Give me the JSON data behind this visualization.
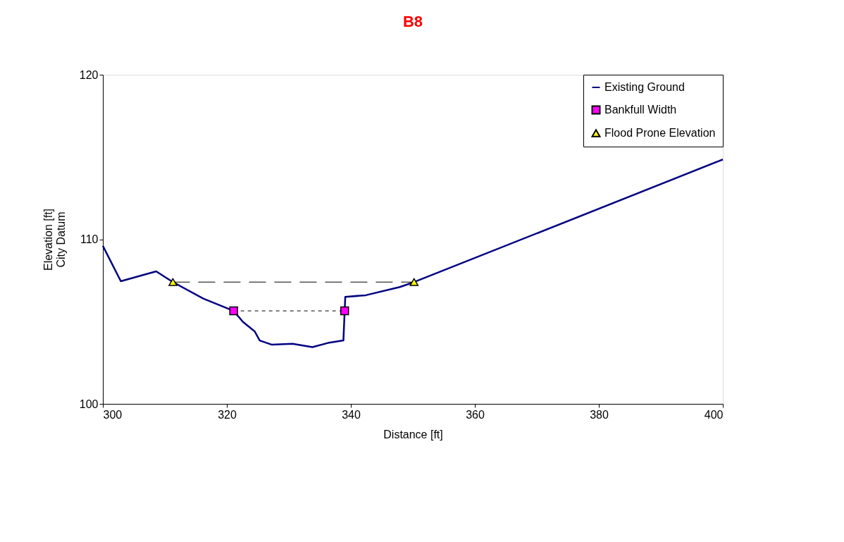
{
  "chart_data": {
    "type": "line",
    "title": "B8",
    "xlabel": "Distance [ft]",
    "ylabel": "Elevation [ft]\nCity Datum",
    "xlim": [
      300,
      400
    ],
    "xticks": [
      300,
      320,
      340,
      360,
      380,
      400
    ],
    "ylim": [
      100,
      120
    ],
    "yticks": [
      100,
      110,
      120
    ],
    "grid": false,
    "legend": "top right",
    "series": [
      {
        "name": "Existing Ground",
        "color": "#000080",
        "line_style": "solid",
        "marker": "none",
        "x": [
          300,
          302.9,
          308.6,
          311.3,
          316.2,
          321.1,
          322.6,
          324.5,
          325.3,
          327.2,
          330.6,
          333.8,
          336.3,
          338.8,
          339.1,
          342.4,
          347.9,
          350.2,
          400
        ],
        "values": [
          109.6,
          107.45,
          108.05,
          107.4,
          106.4,
          105.65,
          104.98,
          104.4,
          103.85,
          103.6,
          103.65,
          103.45,
          103.7,
          103.85,
          106.5,
          106.6,
          107.1,
          107.4,
          114.85
        ]
      },
      {
        "name": "Bankfull Width",
        "color": "#ff00ff",
        "line_style": "dotted",
        "marker": "square",
        "x": [
          321.1,
          339.0
        ],
        "values": [
          105.65,
          105.65
        ]
      },
      {
        "name": "Flood Prone Elevation",
        "color": "#ffff00",
        "line_style": "dashed",
        "marker": "triangle",
        "x": [
          311.3,
          350.2
        ],
        "values": [
          107.4,
          107.4
        ]
      }
    ]
  }
}
